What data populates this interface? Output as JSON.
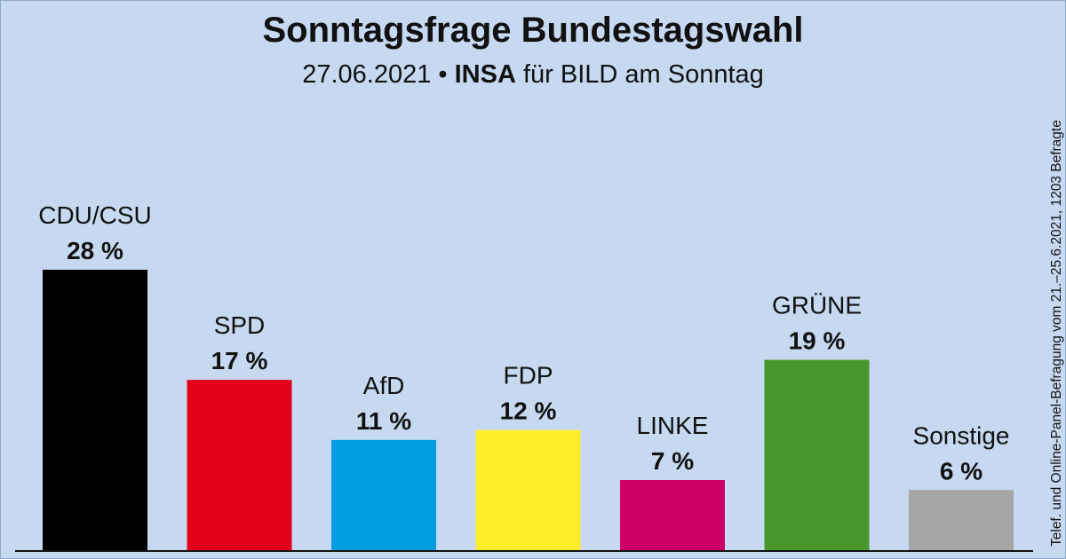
{
  "title": "Sonntagsfrage Bundestagswahl",
  "subtitle": {
    "date": "27.06.2021",
    "separator": "•",
    "institute": "INSA",
    "client": "für BILD am Sonntag"
  },
  "side_note": "Telef. und Online-Panel-Befragung vom 21.–25.6.2021, 1203 Befragte",
  "chart_data": {
    "type": "bar",
    "title": "Sonntagsfrage Bundestagswahl",
    "xlabel": "",
    "ylabel": "",
    "ylim": [
      0,
      28
    ],
    "grid": false,
    "categories": [
      "CDU/CSU",
      "SPD",
      "AfD",
      "FDP",
      "LINKE",
      "GRÜNE",
      "Sonstige"
    ],
    "values": [
      28,
      17,
      11,
      12,
      7,
      19,
      6
    ],
    "value_labels": [
      "28 %",
      "17 %",
      "11 %",
      "12 %",
      "7 %",
      "19 %",
      "6 %"
    ],
    "colors": [
      "#000000",
      "#e3001b",
      "#009ee0",
      "#ffed2e",
      "#cc0066",
      "#46962b",
      "#a6a6a6"
    ]
  }
}
